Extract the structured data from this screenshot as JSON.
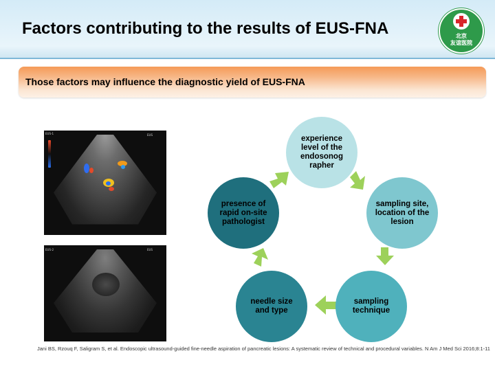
{
  "slide": {
    "title": "Factors contributing to the results of EUS-FNA",
    "subtitle": "Those factors may influence the diagnostic yield of EUS-FNA",
    "citation": "Jani BS, Rzouq F, Saligram S, et al. Endoscopic ultrasound-guided fine-needle aspiration of pancreatic lesions: A systematic review of technical and procedural variables. N Am J Med Sci 2016;8:1-11"
  },
  "logo": {
    "line1": "北京",
    "line2": "友谊医院"
  },
  "cycle": {
    "nodes": [
      {
        "label": "experience level of the endosonographer",
        "display": "experience level of the endosonog rapher",
        "color": "#b9e2e6"
      },
      {
        "label": "sampling site, location of the lesion",
        "display": "sampling site, location of the lesion",
        "color": "#7fc7cf"
      },
      {
        "label": "sampling technique",
        "display": "sampling technique",
        "color": "#4fb1bc"
      },
      {
        "label": "needle size and type",
        "display": "needle size and type",
        "color": "#2a8492"
      },
      {
        "label": "presence of rapid on-site pathologist",
        "display": "presence of rapid on-site pathologist",
        "color": "#1f6f7d"
      }
    ],
    "arrow_color": "#9dd15a"
  },
  "colors": {
    "header_band": "#d4ebf7",
    "subtitle_bar": "#f59a57",
    "logo_green": "#2e9a4a"
  }
}
